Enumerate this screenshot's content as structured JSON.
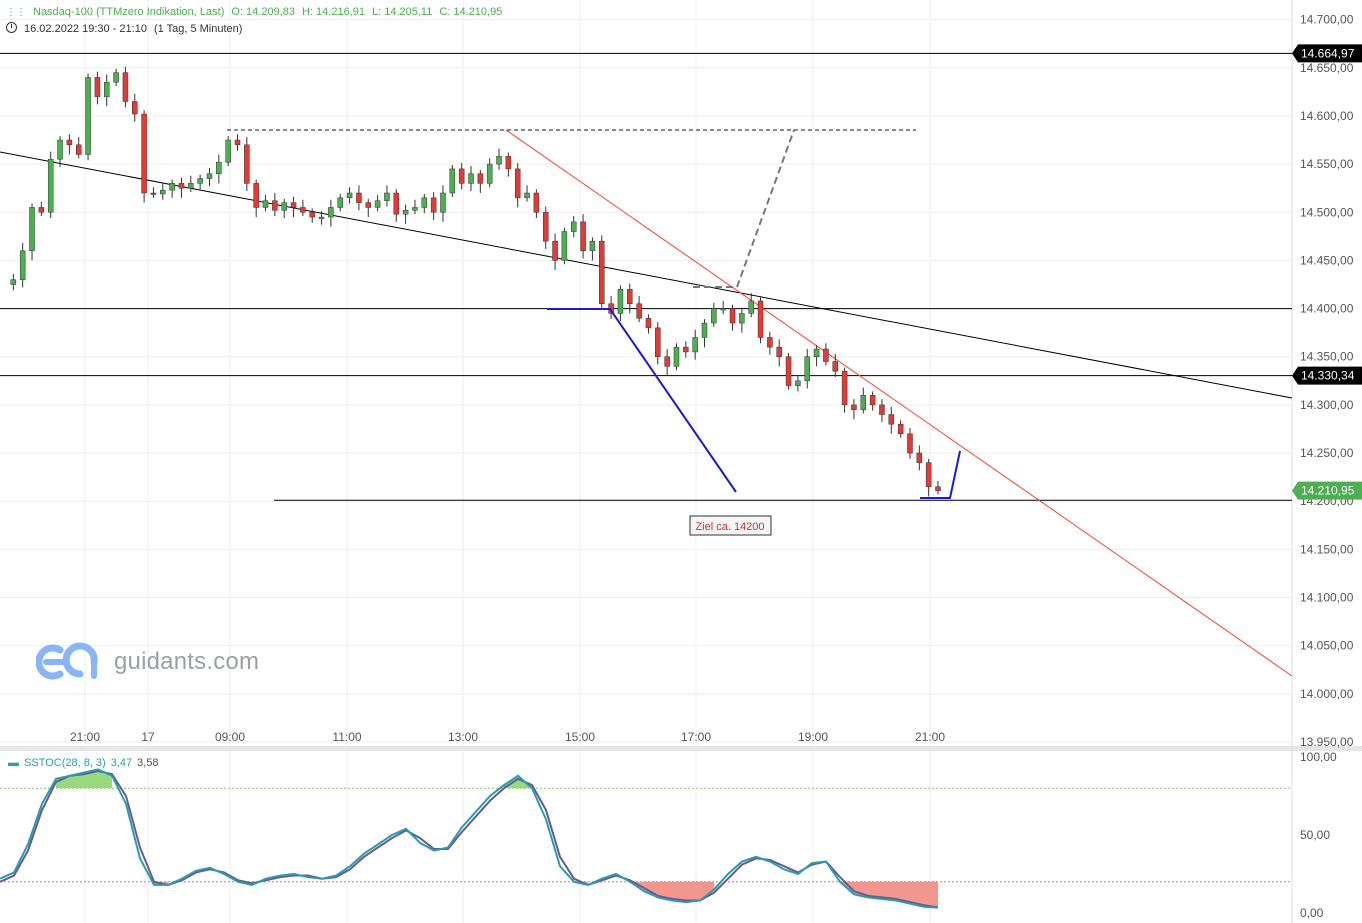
{
  "header": {
    "instrument": "Nasdaq-100 (TTMzero Indikation, Last)",
    "open": "O: 14.209,83",
    "high": "H: 14.216,91",
    "low": "L: 14.205,11",
    "close": "C: 14.210,95",
    "range": "16.02.2022 19:30 - 21:10",
    "interval": "(1 Tag, 5 Minuten)",
    "instrument_icon": "candlestick-icon",
    "range_icon": "clock-icon"
  },
  "logo": {
    "text": "guidants.com",
    "icon": "guidants-logo-icon",
    "color": "#8ab4f8"
  },
  "chart_data": {
    "type": "candlestick",
    "y_axis": {
      "labels": [
        "14.700,00",
        "14.650,00",
        "14.600,00",
        "14.550,00",
        "14.500,00",
        "14.450,00",
        "14.400,00",
        "14.350,00",
        "14.300,00",
        "14.250,00",
        "14.200,00",
        "14.150,00",
        "14.100,00",
        "14.050,00",
        "14.000,00",
        "13.950,00"
      ],
      "values": [
        14700,
        14650,
        14600,
        14550,
        14500,
        14450,
        14400,
        14350,
        14300,
        14250,
        14200,
        14150,
        14100,
        14050,
        14000,
        13950
      ],
      "range": [
        13950,
        14710
      ]
    },
    "x_axis": {
      "labels": [
        "21:00",
        "17",
        "09:00",
        "11:00",
        "13:00",
        "15:00",
        "17:00",
        "19:00",
        "21:00"
      ]
    },
    "price_tags": [
      {
        "label": "14.664,97",
        "value": 14664.97,
        "color": "#000000"
      },
      {
        "label": "14.330,34",
        "value": 14330.34,
        "color": "#000000"
      },
      {
        "label": "14.210,95",
        "value": 14210.95,
        "color": "#4caf50"
      }
    ],
    "horizontal_lines": [
      14664.97,
      14400,
      14330.34,
      14201
    ],
    "annotation": {
      "text": "Ziel ca. 14200",
      "color": "#d32f2f"
    },
    "candles_path": [
      14425,
      14430,
      14460,
      14505,
      14500,
      14555,
      14575,
      14570,
      14560,
      14640,
      14620,
      14635,
      14645,
      14615,
      14602,
      14520,
      14519,
      14523,
      14530,
      14525,
      14530,
      14535,
      14540,
      14552,
      14575,
      14570,
      14530,
      14505,
      14512,
      14502,
      14510,
      14505,
      14500,
      14495,
      14495,
      14505,
      14515,
      14520,
      14510,
      14505,
      14512,
      14520,
      14498,
      14502,
      14505,
      14515,
      14500,
      14520,
      14545,
      14530,
      14540,
      14530,
      14550,
      14558,
      14545,
      14515,
      14520,
      14500,
      14470,
      14450,
      14480,
      14490,
      14460,
      14470,
      14405,
      14395,
      14420,
      14405,
      14390,
      14380,
      14350,
      14340,
      14360,
      14355,
      14370,
      14385,
      14400,
      14400,
      14385,
      14395,
      14408,
      14370,
      14360,
      14350,
      14320,
      14325,
      14350,
      14358,
      14345,
      14335,
      14300,
      14295,
      14310,
      14300,
      14290,
      14280,
      14270,
      14250,
      14240,
      14215,
      14210.95
    ],
    "oscillator": {
      "name": "SSTOC(28, 8, 3)",
      "value1": "3,47",
      "value2": "3,58",
      "y_labels": [
        "100,00",
        "50,00",
        "0,00"
      ],
      "y_values": [
        100,
        50,
        0
      ],
      "upper_level": 80,
      "lower_level": 20,
      "k": [
        22,
        26,
        44,
        70,
        86,
        88,
        90,
        92,
        88,
        70,
        35,
        18,
        18,
        22,
        27,
        29,
        25,
        20,
        18,
        22,
        24,
        25,
        23,
        22,
        24,
        30,
        38,
        44,
        50,
        54,
        45,
        40,
        42,
        55,
        65,
        75,
        82,
        88,
        80,
        60,
        30,
        20,
        18,
        22,
        25,
        20,
        14,
        10,
        8,
        7,
        8,
        15,
        25,
        33,
        36,
        33,
        28,
        25,
        32,
        33,
        20,
        12,
        10,
        9,
        8,
        6,
        4,
        3.47
      ],
      "d": [
        20,
        24,
        40,
        66,
        84,
        88,
        89,
        91,
        89,
        75,
        42,
        20,
        18,
        21,
        26,
        28,
        26,
        21,
        19,
        21,
        23,
        24,
        24,
        22,
        23,
        28,
        36,
        42,
        48,
        53,
        48,
        41,
        41,
        52,
        62,
        72,
        80,
        86,
        82,
        66,
        36,
        22,
        18,
        21,
        24,
        21,
        16,
        11,
        9,
        8,
        8,
        13,
        22,
        31,
        35,
        34,
        30,
        26,
        31,
        33,
        23,
        14,
        11,
        10,
        9,
        7,
        5,
        3.58
      ]
    }
  },
  "colors": {
    "up": "#4caf50",
    "down": "#e53935",
    "trendline_red": "#f44336",
    "projection_blue": "#1a1ad6",
    "projection_dashed": "#777777",
    "osc_k": "#2a9bb5",
    "osc_d": "#6a5a8a",
    "overbought_fill": "#8fd46f",
    "oversold_fill": "#f28b82"
  }
}
